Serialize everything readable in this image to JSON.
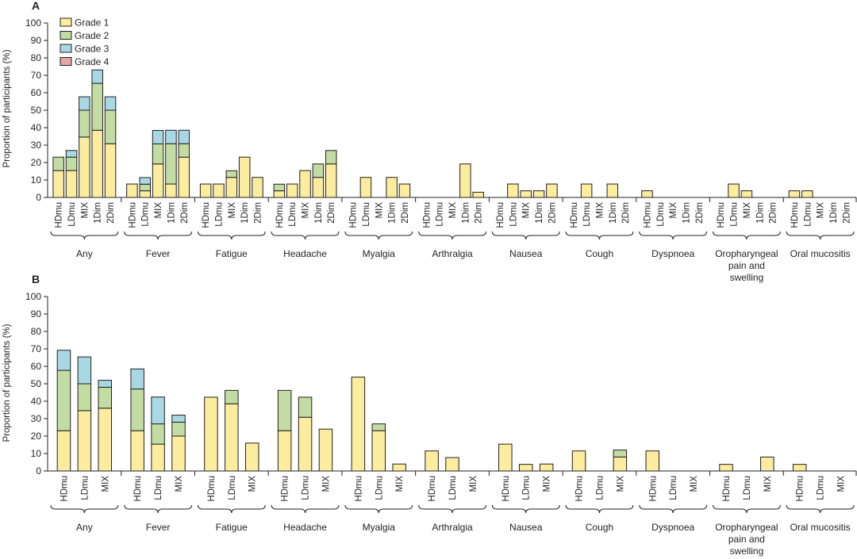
{
  "colors": {
    "grade1": "#fbec9e",
    "grade2": "#c3dca3",
    "grade3": "#a9d8e5",
    "grade4": "#e3a6a4",
    "axis": "#231f20"
  },
  "legend": [
    "Grade 1",
    "Grade 2",
    "Grade 3",
    "Grade 4"
  ],
  "chart_data": [
    {
      "type": "bar",
      "stacked": true,
      "panel": "A",
      "ylabel": "Proportion of participants (%)",
      "ylim": [
        0,
        100
      ],
      "yticks": [
        0,
        10,
        20,
        30,
        40,
        50,
        60,
        70,
        80,
        90,
        100
      ],
      "legend_position": "top-left",
      "groups": [
        "Any",
        "Fever",
        "Fatigue",
        "Headache",
        "Myalgia",
        "Arthralgia",
        "Nausea",
        "Cough",
        "Dyspnoea",
        "Oropharyngeal pain and swelling",
        "Oral mucositis"
      ],
      "categories": [
        "HDmu",
        "LDmu",
        "MIX",
        "1Dim",
        "2Dim"
      ],
      "series": [
        {
          "name": "Grade 1",
          "values": [
            [
              15.4,
              15.4,
              34.6,
              38.5,
              30.8
            ],
            [
              7.7,
              3.8,
              19.2,
              7.7,
              23.1
            ],
            [
              7.7,
              7.7,
              11.5,
              23.1,
              11.5
            ],
            [
              3.8,
              7.7,
              15.4,
              11.5,
              19.2
            ],
            [
              0,
              11.5,
              0,
              11.5,
              7.7
            ],
            [
              0,
              0,
              0,
              19.2,
              3.0
            ],
            [
              0,
              7.7,
              3.8,
              3.8,
              7.7
            ],
            [
              0,
              7.7,
              0,
              7.7,
              0
            ],
            [
              3.8,
              0,
              0,
              0,
              0
            ],
            [
              0,
              7.7,
              3.8,
              0,
              0
            ],
            [
              3.8,
              3.8,
              0,
              0,
              0
            ]
          ]
        },
        {
          "name": "Grade 2",
          "values": [
            [
              7.7,
              7.7,
              15.4,
              26.9,
              19.2
            ],
            [
              0,
              3.8,
              11.5,
              23.1,
              7.7
            ],
            [
              0,
              0,
              3.8,
              0,
              0
            ],
            [
              3.8,
              0,
              0,
              7.7,
              7.7
            ],
            [
              0,
              0,
              0,
              0,
              0
            ],
            [
              0,
              0,
              0,
              0,
              0
            ],
            [
              0,
              0,
              0,
              0,
              0
            ],
            [
              0,
              0,
              0,
              0,
              0
            ],
            [
              0,
              0,
              0,
              0,
              0
            ],
            [
              0,
              0,
              0,
              0,
              0
            ],
            [
              0,
              0,
              0,
              0,
              0
            ]
          ]
        },
        {
          "name": "Grade 3",
          "values": [
            [
              0,
              3.8,
              7.7,
              7.7,
              7.7
            ],
            [
              0,
              3.8,
              7.7,
              7.7,
              7.7
            ],
            [
              0,
              0,
              0,
              0,
              0
            ],
            [
              0,
              0,
              0,
              0,
              0
            ],
            [
              0,
              0,
              0,
              0,
              0
            ],
            [
              0,
              0,
              0,
              0,
              0
            ],
            [
              0,
              0,
              0,
              0,
              0
            ],
            [
              0,
              0,
              0,
              0,
              0
            ],
            [
              0,
              0,
              0,
              0,
              0
            ],
            [
              0,
              0,
              0,
              0,
              0
            ],
            [
              0,
              0,
              0,
              0,
              0
            ]
          ]
        },
        {
          "name": "Grade 4",
          "values": [
            [
              0,
              0,
              0,
              0,
              0
            ],
            [
              0,
              0,
              0,
              0,
              0
            ],
            [
              0,
              0,
              0,
              0,
              0
            ],
            [
              0,
              0,
              0,
              0,
              0
            ],
            [
              0,
              0,
              0,
              0,
              0
            ],
            [
              0,
              0,
              0,
              0,
              0
            ],
            [
              0,
              0,
              0,
              0,
              0
            ],
            [
              0,
              0,
              0,
              0,
              0
            ],
            [
              0,
              0,
              0,
              0,
              0
            ],
            [
              0,
              0,
              0,
              0,
              0
            ],
            [
              0,
              0,
              0,
              0,
              0
            ]
          ]
        }
      ]
    },
    {
      "type": "bar",
      "stacked": true,
      "panel": "B",
      "ylabel": "Proportion of participants (%)",
      "ylim": [
        0,
        100
      ],
      "yticks": [
        0,
        10,
        20,
        30,
        40,
        50,
        60,
        70,
        80,
        90,
        100
      ],
      "groups": [
        "Any",
        "Fever",
        "Fatigue",
        "Headache",
        "Myalgia",
        "Arthralgia",
        "Nausea",
        "Cough",
        "Dyspnoea",
        "Oropharyngeal pain and swelling",
        "Oral mucositis"
      ],
      "categories": [
        "HDmu",
        "LDmu",
        "MIX"
      ],
      "series": [
        {
          "name": "Grade 1",
          "values": [
            [
              23.1,
              34.6,
              36.0
            ],
            [
              23.1,
              15.4,
              20.0
            ],
            [
              42.3,
              38.5,
              16.0
            ],
            [
              23.1,
              30.8,
              24.0
            ],
            [
              53.8,
              23.1,
              4.0
            ],
            [
              11.5,
              7.7,
              0
            ],
            [
              15.4,
              3.8,
              4.0
            ],
            [
              11.5,
              0,
              8.0
            ],
            [
              11.5,
              0,
              0
            ],
            [
              3.8,
              0,
              8.0
            ],
            [
              3.8,
              0,
              0
            ]
          ]
        },
        {
          "name": "Grade 2",
          "values": [
            [
              34.6,
              15.4,
              12.0
            ],
            [
              23.9,
              11.6,
              8.0
            ],
            [
              0,
              7.7,
              0
            ],
            [
              23.1,
              11.5,
              0
            ],
            [
              0,
              3.9,
              0
            ],
            [
              0,
              0,
              0
            ],
            [
              0,
              0,
              0
            ],
            [
              0,
              0,
              4.0
            ],
            [
              0,
              0,
              0
            ],
            [
              0,
              0,
              0
            ],
            [
              0,
              0,
              0
            ]
          ]
        },
        {
          "name": "Grade 3",
          "values": [
            [
              11.5,
              15.4,
              4.0
            ],
            [
              11.5,
              15.4,
              4.0
            ],
            [
              0,
              0,
              0
            ],
            [
              0,
              0,
              0
            ],
            [
              0,
              0,
              0
            ],
            [
              0,
              0,
              0
            ],
            [
              0,
              0,
              0
            ],
            [
              0,
              0,
              0
            ],
            [
              0,
              0,
              0
            ],
            [
              0,
              0,
              0
            ],
            [
              0,
              0,
              0
            ]
          ]
        },
        {
          "name": "Grade 4",
          "values": [
            [
              0,
              0,
              0
            ],
            [
              0,
              0,
              0
            ],
            [
              0,
              0,
              0
            ],
            [
              0,
              0,
              0
            ],
            [
              0,
              0,
              0
            ],
            [
              0,
              0,
              0
            ],
            [
              0,
              0,
              0
            ],
            [
              0,
              0,
              0
            ],
            [
              0,
              0,
              0
            ],
            [
              0,
              0,
              0
            ],
            [
              0,
              0,
              0
            ]
          ]
        }
      ]
    }
  ]
}
